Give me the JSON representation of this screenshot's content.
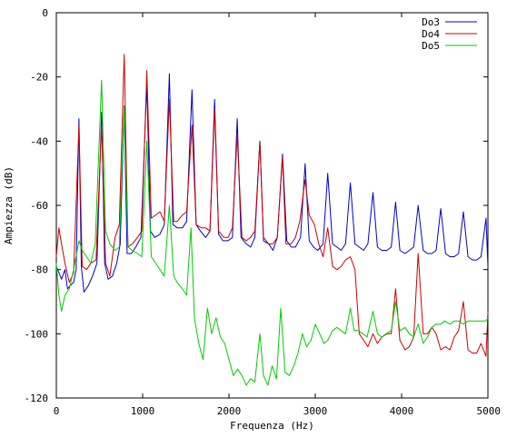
{
  "chart_data": {
    "type": "line",
    "title": "",
    "xlabel": "Frequenza (Hz)",
    "ylabel": "Ampiezza (dB)",
    "xlim": [
      0,
      5000
    ],
    "ylim": [
      -120,
      0
    ],
    "x_ticks": [
      0,
      1000,
      2000,
      3000,
      4000,
      5000
    ],
    "y_ticks": [
      0,
      -20,
      -40,
      -60,
      -80,
      -100,
      -120
    ],
    "x_tick_labels": [
      "0",
      "1000",
      "2000",
      "3000",
      "4000",
      "5000"
    ],
    "y_tick_labels": [
      "0",
      "-20",
      "-40",
      "-60",
      "-80",
      "-100",
      "-120"
    ],
    "grid": false,
    "legend_position": "top-right",
    "series": [
      {
        "name": "Do3",
        "color": "#0000cc",
        "x": [
          0,
          60,
          100,
          130,
          160,
          200,
          230,
          262,
          290,
          320,
          370,
          420,
          470,
          524,
          560,
          600,
          650,
          700,
          740,
          786,
          820,
          870,
          920,
          980,
          1048,
          1090,
          1140,
          1200,
          1250,
          1310,
          1350,
          1400,
          1460,
          1510,
          1572,
          1620,
          1670,
          1730,
          1780,
          1834,
          1880,
          1930,
          1990,
          2040,
          2096,
          2140,
          2200,
          2250,
          2300,
          2358,
          2400,
          2460,
          2510,
          2560,
          2620,
          2670,
          2720,
          2770,
          2830,
          2882,
          2930,
          2980,
          3030,
          3090,
          3144,
          3200,
          3250,
          3300,
          3350,
          3406,
          3460,
          3510,
          3560,
          3610,
          3668,
          3720,
          3770,
          3830,
          3880,
          3930,
          3980,
          4040,
          4090,
          4140,
          4192,
          4250,
          4300,
          4350,
          4400,
          4454,
          4510,
          4560,
          4610,
          4660,
          4716,
          4770,
          4820,
          4870,
          4920,
          4978,
          5000
        ],
        "values": [
          -79,
          -83,
          -80,
          -86,
          -85,
          -84,
          -80,
          -33,
          -79,
          -87,
          -85,
          -82,
          -78,
          -31,
          -78,
          -83,
          -82,
          -78,
          -72,
          -29,
          -75,
          -75,
          -73,
          -70,
          -22,
          -68,
          -70,
          -69,
          -66,
          -19,
          -66,
          -67,
          -67,
          -65,
          -24,
          -66,
          -68,
          -70,
          -68,
          -27,
          -69,
          -71,
          -71,
          -70,
          -33,
          -70,
          -72,
          -73,
          -70,
          -40,
          -71,
          -72,
          -74,
          -70,
          -44,
          -71,
          -73,
          -73,
          -70,
          -47,
          -71,
          -73,
          -74,
          -72,
          -50,
          -72,
          -73,
          -74,
          -72,
          -53,
          -72,
          -73,
          -74,
          -72,
          -56,
          -73,
          -74,
          -74,
          -73,
          -59,
          -74,
          -75,
          -74,
          -73,
          -60,
          -74,
          -75,
          -75,
          -74,
          -61,
          -75,
          -76,
          -76,
          -75,
          -62,
          -76,
          -77,
          -77,
          -76,
          -64,
          -79
        ]
      },
      {
        "name": "Do4",
        "color": "#cc0000",
        "x": [
          0,
          30,
          60,
          100,
          150,
          200,
          262,
          300,
          350,
          400,
          460,
          524,
          570,
          620,
          680,
          730,
          786,
          830,
          880,
          940,
          990,
          1048,
          1100,
          1150,
          1200,
          1250,
          1310,
          1360,
          1400,
          1460,
          1510,
          1572,
          1620,
          1680,
          1730,
          1780,
          1834,
          1880,
          1940,
          1990,
          2040,
          2096,
          2150,
          2200,
          2250,
          2300,
          2358,
          2400,
          2460,
          2510,
          2560,
          2620,
          2660,
          2720,
          2770,
          2820,
          2882,
          2930,
          2990,
          3040,
          3090,
          3144,
          3200,
          3250,
          3300,
          3350,
          3406,
          3460,
          3510,
          3560,
          3610,
          3668,
          3720,
          3770,
          3830,
          3880,
          3930,
          3980,
          4040,
          4090,
          4140,
          4192,
          4250,
          4300,
          4350,
          4400,
          4454,
          4510,
          4560,
          4610,
          4660,
          4716,
          4770,
          4820,
          4870,
          4920,
          4978,
          5000
        ],
        "values": [
          -76,
          -67,
          -72,
          -78,
          -84,
          -81,
          -35,
          -79,
          -80,
          -78,
          -77,
          -35,
          -78,
          -82,
          -70,
          -66,
          -13,
          -73,
          -72,
          -70,
          -68,
          -18,
          -64,
          -63,
          -62,
          -65,
          -27,
          -65,
          -65,
          -63,
          -62,
          -35,
          -66,
          -67,
          -67,
          -68,
          -30,
          -68,
          -70,
          -70,
          -67,
          -38,
          -70,
          -71,
          -70,
          -68,
          -40,
          -70,
          -72,
          -72,
          -70,
          -45,
          -72,
          -72,
          -70,
          -65,
          -52,
          -63,
          -66,
          -72,
          -76,
          -67,
          -79,
          -80,
          -79,
          -77,
          -76,
          -80,
          -100,
          -102,
          -104,
          -100,
          -103,
          -101,
          -100,
          -100,
          -86,
          -102,
          -105,
          -104,
          -101,
          -75,
          -100,
          -100,
          -98,
          -100,
          -105,
          -104,
          -105,
          -101,
          -99,
          -90,
          -105,
          -106,
          -106,
          -103,
          -107,
          -93
        ]
      },
      {
        "name": "Do5",
        "color": "#00cc00",
        "x": [
          0,
          30,
          60,
          100,
          150,
          200,
          262,
          300,
          350,
          400,
          450,
          524,
          570,
          620,
          680,
          730,
          786,
          830,
          880,
          940,
          990,
          1048,
          1100,
          1150,
          1200,
          1250,
          1310,
          1360,
          1400,
          1460,
          1510,
          1560,
          1600,
          1650,
          1700,
          1750,
          1800,
          1850,
          1900,
          1950,
          2000,
          2050,
          2100,
          2150,
          2200,
          2250,
          2300,
          2358,
          2400,
          2450,
          2500,
          2550,
          2600,
          2650,
          2700,
          2750,
          2800,
          2850,
          2900,
          2950,
          3000,
          3050,
          3100,
          3144,
          3200,
          3250,
          3300,
          3350,
          3406,
          3450,
          3500,
          3550,
          3600,
          3668,
          3720,
          3770,
          3820,
          3880,
          3930,
          3980,
          4040,
          4090,
          4140,
          4192,
          4250,
          4300,
          4350,
          4400,
          4450,
          4500,
          4560,
          4610,
          4660,
          4716,
          4770,
          4820,
          4870,
          4920,
          4978,
          5000
        ],
        "values": [
          -78,
          -88,
          -93,
          -88,
          -86,
          -80,
          -71,
          -74,
          -76,
          -78,
          -72,
          -21,
          -68,
          -72,
          -74,
          -73,
          -29,
          -73,
          -74,
          -75,
          -76,
          -40,
          -76,
          -78,
          -80,
          -82,
          -60,
          -82,
          -84,
          -86,
          -88,
          -67,
          -95,
          -103,
          -108,
          -92,
          -100,
          -95,
          -101,
          -103,
          -108,
          -113,
          -111,
          -113,
          -116,
          -114,
          -115,
          -100,
          -113,
          -116,
          -110,
          -114,
          -92,
          -112,
          -113,
          -110,
          -106,
          -100,
          -104,
          -102,
          -97,
          -100,
          -103,
          -102,
          -99,
          -98,
          -99,
          -100,
          -92,
          -99,
          -99,
          -100,
          -101,
          -93,
          -100,
          -101,
          -100,
          -99,
          -90,
          -99,
          -98,
          -100,
          -101,
          -97,
          -103,
          -101,
          -98,
          -97,
          -97,
          -96,
          -97,
          -96,
          -96,
          -97,
          -96,
          -96,
          -96,
          -96,
          -96,
          -95
        ]
      }
    ]
  }
}
